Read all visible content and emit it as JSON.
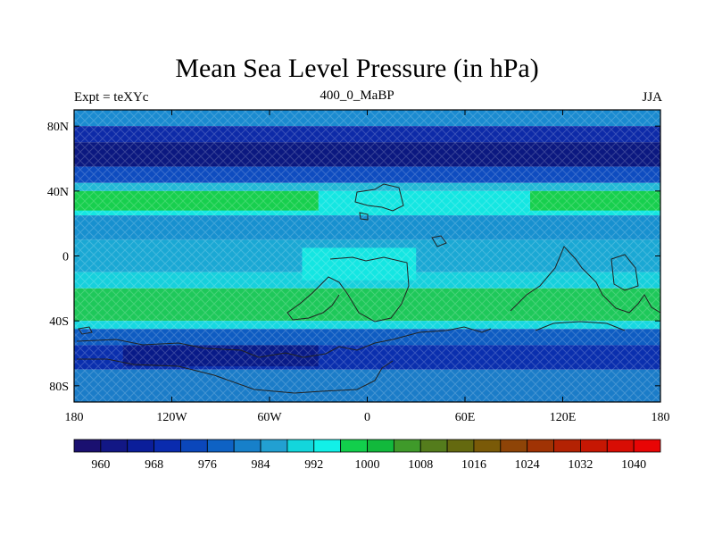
{
  "header": {
    "title": "Mean Sea Level Pressure (in hPa)",
    "left": "Expt = teXYc",
    "center": "400_0_MaBP",
    "right": "JJA"
  },
  "axes": {
    "x_ticks": [
      "180",
      "120W",
      "60W",
      "0",
      "60E",
      "120E",
      "180"
    ],
    "y_ticks": [
      "80N",
      "40N",
      "0",
      "40S",
      "80S"
    ]
  },
  "colorbar": {
    "labels": [
      "960",
      "968",
      "976",
      "984",
      "992",
      "1000",
      "1008",
      "1016",
      "1024",
      "1032",
      "1040"
    ],
    "colors": [
      "#1a1070",
      "#121785",
      "#0b1e9a",
      "#0a2bae",
      "#0b47bb",
      "#0e62c4",
      "#1780ca",
      "#22a0d2",
      "#13d6dc",
      "#12f0e8",
      "#12cf4c",
      "#12b93c",
      "#3f9a2a",
      "#547c1c",
      "#64690f",
      "#7a5a08",
      "#8e4407",
      "#a03304",
      "#b32203",
      "#c61703",
      "#d80d04",
      "#e80505"
    ]
  },
  "map": {
    "bands": [
      {
        "lat_top": 90,
        "lat_bottom": 80,
        "color": "#1a8ad0"
      },
      {
        "lat_top": 80,
        "lat_bottom": 70,
        "color": "#0d2aa8"
      },
      {
        "lat_top": 70,
        "lat_bottom": 55,
        "color": "#0b1880"
      },
      {
        "lat_top": 55,
        "lat_bottom": 45,
        "color": "#0e4cc0"
      },
      {
        "lat_top": 45,
        "lat_bottom": 40,
        "color": "#22b8d6"
      },
      {
        "lat_top": 40,
        "lat_bottom": 25,
        "color": "#14e6e2"
      },
      {
        "lat_top": 25,
        "lat_bottom": 10,
        "color": "#1790cf"
      },
      {
        "lat_top": 10,
        "lat_bottom": -10,
        "color": "#1aa8d4"
      },
      {
        "lat_top": -10,
        "lat_bottom": -20,
        "color": "#16d0dc"
      },
      {
        "lat_top": -20,
        "lat_bottom": -40,
        "color": "#1ec85a"
      },
      {
        "lat_top": -40,
        "lat_bottom": -45,
        "color": "#16d8e0"
      },
      {
        "lat_top": -45,
        "lat_bottom": -55,
        "color": "#0e5cc2"
      },
      {
        "lat_top": -55,
        "lat_bottom": -70,
        "color": "#0a2fae"
      },
      {
        "lat_top": -70,
        "lat_bottom": -90,
        "color": "#1b7cc8"
      }
    ],
    "highlights": [
      {
        "lon_min": -180,
        "lon_max": -30,
        "lat_top": 40,
        "lat_bottom": 28,
        "color": "#17cf4e"
      },
      {
        "lon_min": 100,
        "lon_max": 180,
        "lat_top": 40,
        "lat_bottom": 28,
        "color": "#17cf4e"
      },
      {
        "lon_min": -40,
        "lon_max": 30,
        "lat_top": 5,
        "lat_bottom": -15,
        "color": "#14e6e2"
      },
      {
        "lon_min": -150,
        "lon_max": -30,
        "lat_top": -55,
        "lat_bottom": -68,
        "color": "#081a88"
      }
    ]
  }
}
